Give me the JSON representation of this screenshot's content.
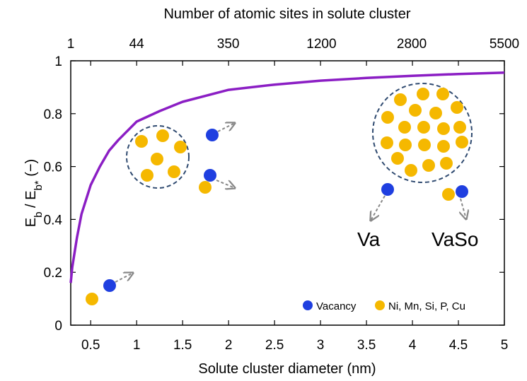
{
  "chart_data": {
    "type": "line",
    "top_axis_label": "Number of atomic sites in solute cluster",
    "xlabel": "Solute cluster diameter (nm)",
    "ylabel": [
      "E",
      "b",
      " / E",
      "b*",
      " (−)"
    ],
    "x": [
      0.283,
      0.3,
      0.35,
      0.4,
      0.5,
      0.6,
      0.7,
      0.8,
      1,
      1.25,
      1.5,
      2,
      2.5,
      3,
      3.5,
      4,
      4.5,
      5
    ],
    "series": [
      {
        "color": "#8b1ec4",
        "values": [
          0.16,
          0.22,
          0.33,
          0.42,
          0.53,
          0.6,
          0.66,
          0.7,
          0.77,
          0.81,
          0.845,
          0.89,
          0.91,
          0.925,
          0.935,
          0.943,
          0.95,
          0.955
        ]
      }
    ],
    "xlim": [
      0.283,
      5
    ],
    "ylim": [
      0,
      1
    ],
    "xticks": [
      0.5,
      1,
      1.5,
      2,
      2.5,
      3,
      3.5,
      4,
      4.5,
      5
    ],
    "yticks": [
      0,
      0.2,
      0.4,
      0.6,
      0.8,
      1
    ],
    "x2lim": [
      1,
      5500
    ],
    "x2scale": "cube",
    "x2ticks": [
      1,
      44,
      350,
      1200,
      2800,
      5500
    ],
    "legend": [
      {
        "name": "Vacancy",
        "color": "#1f3fe0"
      },
      {
        "name": "Ni, Mn, Si, P, Cu",
        "color": "#f5b800"
      }
    ],
    "annotations": [
      "Va",
      "VaSo"
    ]
  }
}
